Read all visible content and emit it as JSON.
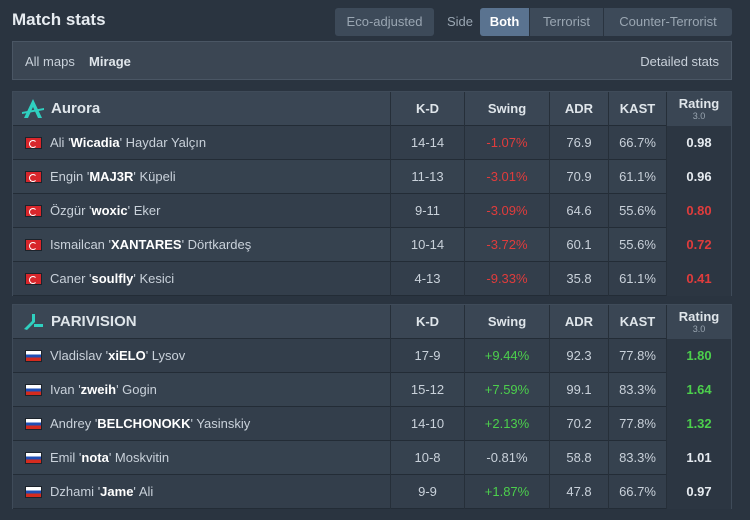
{
  "header": {
    "title": "Match stats",
    "eco_label": "Eco-adjusted",
    "side_label": "Side",
    "sides": [
      "Both",
      "Terrorist",
      "Counter-Terrorist"
    ]
  },
  "mapbar": {
    "all_maps": "All maps",
    "selected_map": "Mirage",
    "detailed": "Detailed stats"
  },
  "columns": {
    "kd": "K-D",
    "swing": "Swing",
    "adr": "ADR",
    "kast": "KAST",
    "rating": "Rating",
    "rating_version": "3.0"
  },
  "teams": [
    {
      "name": "Aurora",
      "logo_icon": "aurora-logo-icon",
      "accent": "#2fd0c0",
      "players": [
        {
          "flag": "TR",
          "first": "Ali",
          "nick": "Wicadia",
          "last": "Haydar Yalçın",
          "kd": "14-14",
          "swing": "-1.07%",
          "adr": "76.9",
          "kast": "66.7%",
          "rating": "0.98"
        },
        {
          "flag": "TR",
          "first": "Engin",
          "nick": "MAJ3R",
          "last": "Küpeli",
          "kd": "11-13",
          "swing": "-3.01%",
          "adr": "70.9",
          "kast": "61.1%",
          "rating": "0.96"
        },
        {
          "flag": "TR",
          "first": "Özgür",
          "nick": "woxic",
          "last": "Eker",
          "kd": "9-11",
          "swing": "-3.09%",
          "adr": "64.6",
          "kast": "55.6%",
          "rating": "0.80"
        },
        {
          "flag": "TR",
          "first": "Ismailcan",
          "nick": "XANTARES",
          "last": "Dörtkardeş",
          "kd": "10-14",
          "swing": "-3.72%",
          "adr": "60.1",
          "kast": "55.6%",
          "rating": "0.72"
        },
        {
          "flag": "TR",
          "first": "Caner",
          "nick": "soulfly",
          "last": "Kesici",
          "kd": "4-13",
          "swing": "-9.33%",
          "adr": "35.8",
          "kast": "61.1%",
          "rating": "0.41"
        }
      ]
    },
    {
      "name": "PARIVISION",
      "logo_icon": "parivision-logo-icon",
      "accent": "#2fd0c0",
      "players": [
        {
          "flag": "RU",
          "first": "Vladislav",
          "nick": "xiELO",
          "last": "Lysov",
          "kd": "17-9",
          "swing": "+9.44%",
          "adr": "92.3",
          "kast": "77.8%",
          "rating": "1.80"
        },
        {
          "flag": "RU",
          "first": "Ivan",
          "nick": "zweih",
          "last": "Gogin",
          "kd": "15-12",
          "swing": "+7.59%",
          "adr": "99.1",
          "kast": "83.3%",
          "rating": "1.64"
        },
        {
          "flag": "RU",
          "first": "Andrey",
          "nick": "BELCHONOKK",
          "last": "Yasinskiy",
          "kd": "14-10",
          "swing": "+2.13%",
          "adr": "70.2",
          "kast": "77.8%",
          "rating": "1.32"
        },
        {
          "flag": "RU",
          "first": "Emil",
          "nick": "nota",
          "last": "Moskvitin",
          "kd": "10-8",
          "swing": "-0.81%",
          "adr": "58.8",
          "kast": "83.3%",
          "rating": "1.01"
        },
        {
          "flag": "RU",
          "first": "Dzhami",
          "nick": "Jame",
          "last": "Ali",
          "kd": "9-9",
          "swing": "+1.87%",
          "adr": "47.8",
          "kast": "66.7%",
          "rating": "0.97"
        }
      ]
    }
  ],
  "colors": {
    "negative": "#e03c3c",
    "positive": "#4ccf4c",
    "active_tab": "#5a7390"
  }
}
